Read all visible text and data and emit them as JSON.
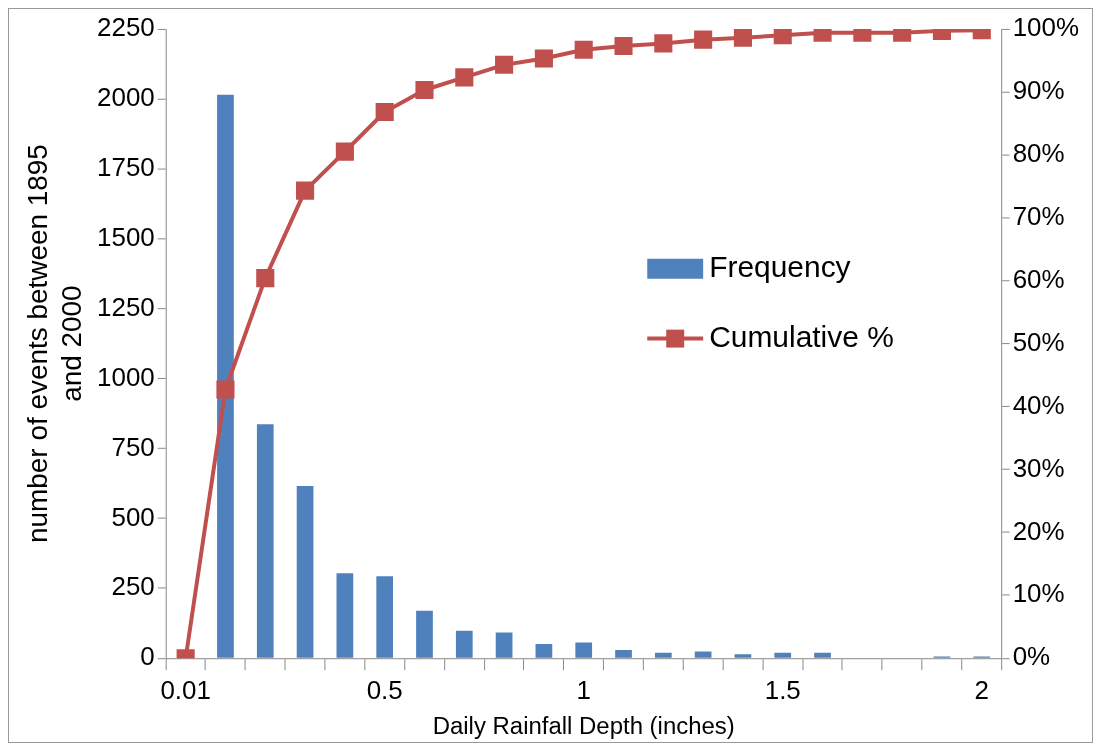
{
  "chart_data": {
    "type": "bar",
    "xlabel": "Daily Rainfall Depth (inches)",
    "ylabel": "number of events between 1895 and 2000",
    "categories": [
      "0.01",
      null,
      null,
      null,
      null,
      "0.5",
      null,
      null,
      null,
      null,
      "1",
      null,
      null,
      null,
      null,
      "1.5",
      null,
      null,
      null,
      null,
      "2"
    ],
    "series": [
      {
        "name": "Frequency",
        "color": "#4f81bd",
        "values": [
          0,
          2015,
          837,
          616,
          304,
          293,
          170,
          98,
          92,
          51,
          56,
          29,
          20,
          24,
          14,
          20,
          20,
          0,
          0,
          6,
          6
        ]
      },
      {
        "name": "Cumulative %",
        "type": "line",
        "axis": "y2",
        "color": "#c0504d",
        "marker": "square",
        "line_style": "solid",
        "values": [
          0,
          42.7,
          60.4,
          74.3,
          80.5,
          86.8,
          90.3,
          92.3,
          94.3,
          95.3,
          96.7,
          97.3,
          97.7,
          98.3,
          98.6,
          99.0,
          99.4,
          99.4,
          99.4,
          99.7,
          99.8
        ]
      }
    ],
    "ylim": [
      0,
      2250
    ],
    "yticks": [
      0,
      250,
      500,
      750,
      1000,
      1250,
      1500,
      1750,
      2000,
      2250
    ],
    "y2lim": [
      0,
      100
    ],
    "y2ticks": [
      {
        "value": 0,
        "label": "0%"
      },
      {
        "value": 10,
        "label": "10%"
      },
      {
        "value": 20,
        "label": "20%"
      },
      {
        "value": 30,
        "label": "30%"
      },
      {
        "value": 40,
        "label": "40%"
      },
      {
        "value": 50,
        "label": "50%"
      },
      {
        "value": 60,
        "label": "60%"
      },
      {
        "value": 70,
        "label": "70%"
      },
      {
        "value": 80,
        "label": "80%"
      },
      {
        "value": 90,
        "label": "90%"
      },
      {
        "value": 100,
        "label": "100%"
      }
    ],
    "grid": false,
    "legend": "center right"
  }
}
